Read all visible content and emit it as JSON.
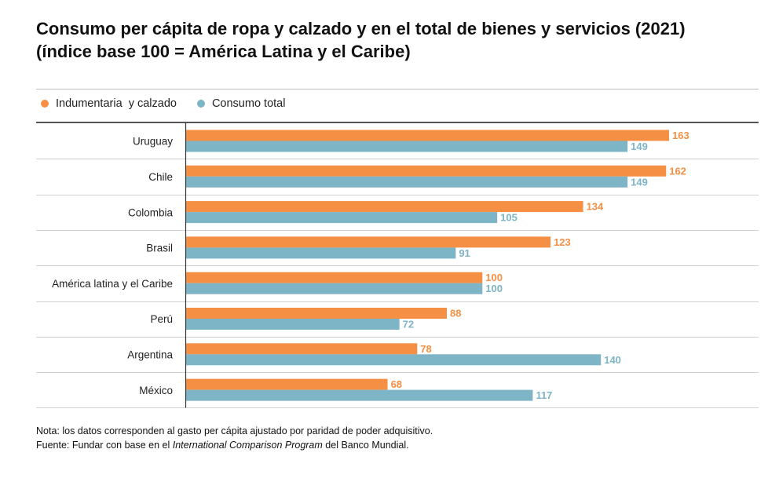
{
  "title": {
    "line1": "Consumo per cápita de ropa y calzado y en el total de bienes y servicios (2021)",
    "line2": "(índice base 100 = América Latina y el Caribe)"
  },
  "colors": {
    "indumentaria": "#f58f44",
    "consumo_total": "#7db4c6",
    "grid": "#cfcfcf",
    "axis": "#333333"
  },
  "chart_data": {
    "type": "bar",
    "orientation": "horizontal",
    "categories": [
      "Uruguay",
      "Chile",
      "Colombia",
      "Brasil",
      "América latina y el Caribe",
      "Perú",
      "Argentina",
      "México"
    ],
    "series": [
      {
        "name": "Indumentaria  y calzado",
        "values": [
          163,
          162,
          134,
          123,
          100,
          88,
          78,
          68
        ]
      },
      {
        "name": "Consumo total",
        "values": [
          149,
          149,
          105,
          91,
          100,
          72,
          140,
          117
        ]
      }
    ],
    "xlim": [
      0,
      174
    ],
    "grid": true,
    "legend_position": "top-left"
  },
  "footer": {
    "note": "Nota: los datos corresponden al gasto per cápita ajustado por paridad de poder adquisitivo.",
    "source_prefix": "Fuente: Fundar con base en el ",
    "source_program": "International Comparison Program",
    "source_suffix": " del Banco Mundial."
  }
}
